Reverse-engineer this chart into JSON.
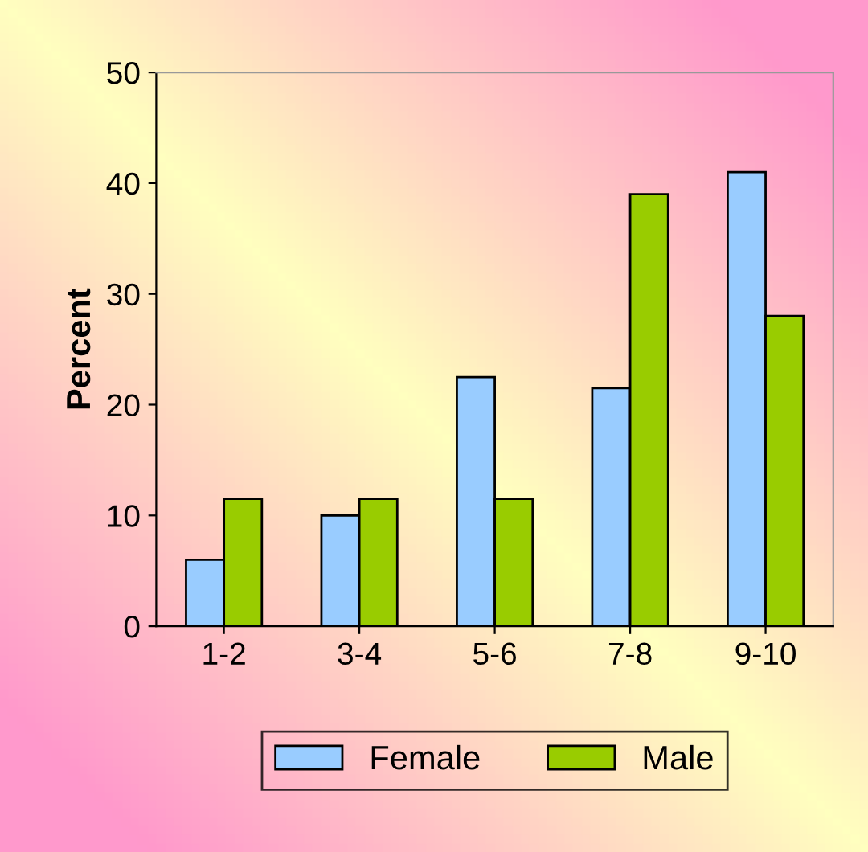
{
  "chart_data": {
    "type": "bar",
    "ylabel": "Percent",
    "categories": [
      "1-2",
      "3-4",
      "5-6",
      "7-8",
      "9-10"
    ],
    "series": [
      {
        "name": "Female",
        "color": "#99ccff",
        "values": [
          6,
          10,
          22.5,
          21.5,
          41
        ]
      },
      {
        "name": "Male",
        "color": "#99cc00",
        "values": [
          11.5,
          11.5,
          11.5,
          39,
          28
        ]
      }
    ],
    "ylim": [
      0,
      50
    ],
    "yticks": [
      0,
      10,
      20,
      30,
      40,
      50
    ],
    "grid": false,
    "legend": "bottom"
  }
}
